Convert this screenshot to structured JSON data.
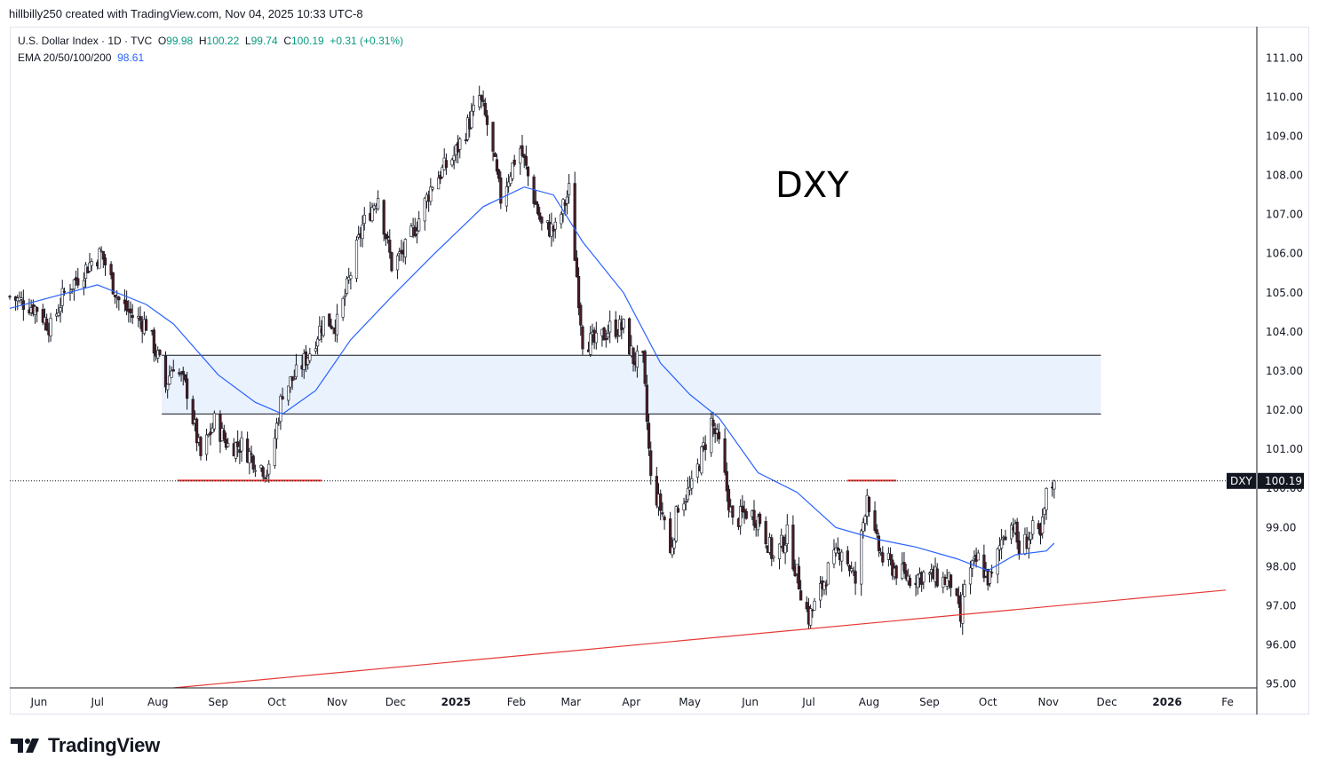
{
  "credit": "hillbilly250 created with TradingView.com, Nov 04, 2025 10:33 UTC-8",
  "legend": {
    "symbol": "U.S. Dollar Index · 1D · TVC",
    "open_label": "O",
    "open": "99.98",
    "high_label": "H",
    "high": "100.22",
    "low_label": "L",
    "low": "99.74",
    "close_label": "C",
    "close": "100.19",
    "change": "+0.31 (+0.31%)",
    "ema_label": "EMA 20/50/100/200",
    "ema_value": "98.61"
  },
  "logo": {
    "text": "TradingView",
    "icon": "tradingview-logo-icon"
  },
  "colors": {
    "up": "#ffffff",
    "down": "#4a1c24",
    "wick": "#131722",
    "ema": "#2962ff",
    "zone_fill": "#e3eefc",
    "support_line": "#e53935",
    "last_price_bg": "#131722"
  },
  "chart_data": {
    "type": "candlestick",
    "title": "DXY",
    "symbol": "U.S. Dollar Index",
    "price_label": "DXY",
    "last_price": 100.19,
    "ylim": [
      94.9,
      111.8
    ],
    "y_ticks": [
      "111.00",
      "110.00",
      "109.00",
      "108.00",
      "107.00",
      "106.00",
      "105.00",
      "104.00",
      "103.00",
      "102.00",
      "101.00",
      "100.00",
      "99.00",
      "98.00",
      "97.00",
      "96.00",
      "95.00"
    ],
    "x_ticks": [
      {
        "label": "Jun",
        "date": "2024-06-01"
      },
      {
        "label": "Jul",
        "date": "2024-07-01"
      },
      {
        "label": "Aug",
        "date": "2024-08-01"
      },
      {
        "label": "Sep",
        "date": "2024-09-01"
      },
      {
        "label": "Oct",
        "date": "2024-10-01"
      },
      {
        "label": "Nov",
        "date": "2024-11-01"
      },
      {
        "label": "Dec",
        "date": "2024-12-01"
      },
      {
        "label": "2025",
        "date": "2025-01-01",
        "bold": true
      },
      {
        "label": "Feb",
        "date": "2025-02-01"
      },
      {
        "label": "Mar",
        "date": "2025-03-01"
      },
      {
        "label": "Apr",
        "date": "2025-04-01"
      },
      {
        "label": "May",
        "date": "2025-05-01"
      },
      {
        "label": "Jun",
        "date": "2025-06-01"
      },
      {
        "label": "Jul",
        "date": "2025-07-01"
      },
      {
        "label": "Aug",
        "date": "2025-08-01"
      },
      {
        "label": "Sep",
        "date": "2025-09-01"
      },
      {
        "label": "Oct",
        "date": "2025-10-01"
      },
      {
        "label": "Nov",
        "date": "2025-11-01"
      },
      {
        "label": "Dec",
        "date": "2025-12-01"
      },
      {
        "label": "2026",
        "date": "2026-01-01",
        "bold": true
      },
      {
        "label": "Fe",
        "date": "2026-02-01"
      }
    ],
    "close_path": [
      [
        "2024-05-17",
        104.9
      ],
      [
        "2024-05-31",
        104.6
      ],
      [
        "2024-06-07",
        104.1
      ],
      [
        "2024-06-14",
        105.0
      ],
      [
        "2024-06-28",
        105.8
      ],
      [
        "2024-07-03",
        106.0
      ],
      [
        "2024-07-12",
        104.8
      ],
      [
        "2024-07-19",
        104.4
      ],
      [
        "2024-07-26",
        104.2
      ],
      [
        "2024-08-02",
        103.2
      ],
      [
        "2024-08-05",
        102.6
      ],
      [
        "2024-08-09",
        103.2
      ],
      [
        "2024-08-16",
        102.5
      ],
      [
        "2024-08-23",
        100.8
      ],
      [
        "2024-08-30",
        101.7
      ],
      [
        "2024-09-06",
        101.1
      ],
      [
        "2024-09-13",
        101.1
      ],
      [
        "2024-09-20",
        100.7
      ],
      [
        "2024-09-27",
        100.4
      ],
      [
        "2024-10-04",
        102.5
      ],
      [
        "2024-10-11",
        102.9
      ],
      [
        "2024-10-18",
        103.5
      ],
      [
        "2024-10-25",
        104.3
      ],
      [
        "2024-11-01",
        104.2
      ],
      [
        "2024-11-06",
        105.1
      ],
      [
        "2024-11-14",
        106.7
      ],
      [
        "2024-11-22",
        107.5
      ],
      [
        "2024-11-29",
        105.7
      ],
      [
        "2024-12-06",
        106.1
      ],
      [
        "2024-12-13",
        106.9
      ],
      [
        "2024-12-20",
        107.8
      ],
      [
        "2024-12-31",
        108.5
      ],
      [
        "2025-01-10",
        109.6
      ],
      [
        "2025-01-13",
        110.0
      ],
      [
        "2025-01-17",
        109.3
      ],
      [
        "2025-01-24",
        107.4
      ],
      [
        "2025-01-31",
        108.4
      ],
      [
        "2025-02-03",
        108.7
      ],
      [
        "2025-02-14",
        106.7
      ],
      [
        "2025-02-21",
        106.6
      ],
      [
        "2025-02-28",
        107.6
      ],
      [
        "2025-03-07",
        103.8
      ],
      [
        "2025-03-14",
        103.7
      ],
      [
        "2025-03-21",
        104.1
      ],
      [
        "2025-03-28",
        104.1
      ],
      [
        "2025-04-02",
        103.3
      ],
      [
        "2025-04-07",
        103.2
      ],
      [
        "2025-04-11",
        100.2
      ],
      [
        "2025-04-18",
        99.2
      ],
      [
        "2025-04-21",
        98.3
      ],
      [
        "2025-04-25",
        99.6
      ],
      [
        "2025-05-02",
        100.0
      ],
      [
        "2025-05-12",
        101.7
      ],
      [
        "2025-05-16",
        101.1
      ],
      [
        "2025-05-23",
        99.1
      ],
      [
        "2025-05-30",
        99.4
      ],
      [
        "2025-06-06",
        99.2
      ],
      [
        "2025-06-13",
        98.2
      ],
      [
        "2025-06-20",
        98.8
      ],
      [
        "2025-06-27",
        97.4
      ],
      [
        "2025-07-01",
        96.7
      ],
      [
        "2025-07-04",
        97.0
      ],
      [
        "2025-07-11",
        97.9
      ],
      [
        "2025-07-18",
        98.5
      ],
      [
        "2025-07-25",
        97.6
      ],
      [
        "2025-07-31",
        99.9
      ],
      [
        "2025-08-04",
        98.7
      ],
      [
        "2025-08-08",
        98.2
      ],
      [
        "2025-08-15",
        97.9
      ],
      [
        "2025-08-22",
        97.7
      ],
      [
        "2025-08-29",
        97.8
      ],
      [
        "2025-09-05",
        97.7
      ],
      [
        "2025-09-12",
        97.6
      ],
      [
        "2025-09-17",
        96.6
      ],
      [
        "2025-09-19",
        97.6
      ],
      [
        "2025-09-26",
        98.2
      ],
      [
        "2025-10-01",
        97.7
      ],
      [
        "2025-10-03",
        97.7
      ],
      [
        "2025-10-09",
        98.9
      ],
      [
        "2025-10-14",
        99.1
      ],
      [
        "2025-10-17",
        98.4
      ],
      [
        "2025-10-24",
        98.9
      ],
      [
        "2025-10-28",
        98.7
      ],
      [
        "2025-10-31",
        99.8
      ],
      [
        "2025-11-04",
        100.19
      ]
    ],
    "ema": [
      [
        "2024-05-17",
        104.6
      ],
      [
        "2024-07-01",
        105.2
      ],
      [
        "2024-07-26",
        104.7
      ],
      [
        "2024-08-09",
        104.2
      ],
      [
        "2024-09-01",
        102.9
      ],
      [
        "2024-09-20",
        102.2
      ],
      [
        "2024-10-04",
        101.9
      ],
      [
        "2024-10-21",
        102.5
      ],
      [
        "2024-11-08",
        103.8
      ],
      [
        "2024-11-29",
        104.9
      ],
      [
        "2024-12-21",
        106.0
      ],
      [
        "2025-01-15",
        107.2
      ],
      [
        "2025-02-05",
        107.7
      ],
      [
        "2025-02-20",
        107.5
      ],
      [
        "2025-03-07",
        106.3
      ],
      [
        "2025-03-28",
        105.0
      ],
      [
        "2025-04-16",
        103.2
      ],
      [
        "2025-05-01",
        102.4
      ],
      [
        "2025-05-16",
        101.8
      ],
      [
        "2025-06-05",
        100.4
      ],
      [
        "2025-06-25",
        99.9
      ],
      [
        "2025-07-15",
        99.0
      ],
      [
        "2025-08-05",
        98.7
      ],
      [
        "2025-08-25",
        98.5
      ],
      [
        "2025-09-15",
        98.2
      ],
      [
        "2025-10-01",
        97.9
      ],
      [
        "2025-10-15",
        98.3
      ],
      [
        "2025-10-31",
        98.4
      ],
      [
        "2025-11-04",
        98.6
      ]
    ],
    "zone": {
      "upper": 103.4,
      "lower": 101.9,
      "start": "2024-08-03",
      "end": "2025-11-28"
    },
    "support_lines": [
      {
        "from": [
          "2024-08-11",
          100.2
        ],
        "to": [
          "2024-10-24",
          100.2
        ]
      },
      {
        "from": [
          "2025-07-21",
          100.2
        ],
        "to": [
          "2025-08-15",
          100.2
        ]
      }
    ],
    "trendline": {
      "from": [
        "2024-08-09",
        94.9
      ],
      "to": [
        "2026-01-31",
        97.4
      ]
    },
    "grid": false
  }
}
